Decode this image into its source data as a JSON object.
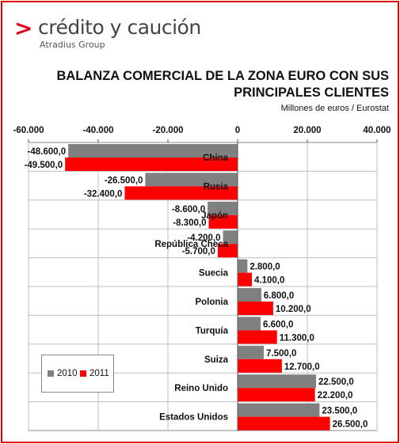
{
  "brand": {
    "mark": ">",
    "name": "crédito y caución",
    "subtitle": "Atradius Group"
  },
  "colors": {
    "series_2010": "#808080",
    "series_2011": "#ff0000",
    "border": "#e00000",
    "grid": "#bfbfbf"
  },
  "chart_data": {
    "type": "bar",
    "orientation": "horizontal",
    "title": "BALANZA COMERCIAL DE LA ZONA EURO CON SUS PRINCIPALES CLIENTES",
    "subtitle": "Millones de euros / Eurostat",
    "categories": [
      "China",
      "Rusia",
      "Japón",
      "República Checa",
      "Suecia",
      "Polonia",
      "Turquía",
      "Suiza",
      "Reino Unido",
      "Estados Unidos"
    ],
    "series": [
      {
        "name": "2010",
        "values": [
          -48600,
          -26500,
          -8600,
          -4200,
          2800,
          6800,
          6600,
          7500,
          22500,
          23500
        ],
        "labels": [
          "-48.600,0",
          "-26.500,0",
          "-8.600,0",
          "-4.200,0",
          "2.800,0",
          "6.800,0",
          "6.600,0",
          "7.500,0",
          "22.500,0",
          "23.500,0"
        ]
      },
      {
        "name": "2011",
        "values": [
          -49500,
          -32400,
          -8300,
          -5700,
          4100,
          10200,
          11300,
          12700,
          22200,
          26500
        ],
        "labels": [
          "-49.500,0",
          "-32.400,0",
          "-8.300,0",
          "-5.700,0",
          "4.100,0",
          "10.200,0",
          "11.300,0",
          "12.700,0",
          "22.200,0",
          "26.500,0"
        ]
      }
    ],
    "xlim": [
      -60000,
      40000
    ],
    "ticks": [
      -60000,
      -40000,
      -20000,
      0,
      20000,
      40000
    ],
    "tick_labels": [
      "-60.000",
      "-40.000",
      "-20.000",
      "0",
      "20.000",
      "40.000"
    ],
    "grid": true,
    "legend": "bottom-left"
  }
}
